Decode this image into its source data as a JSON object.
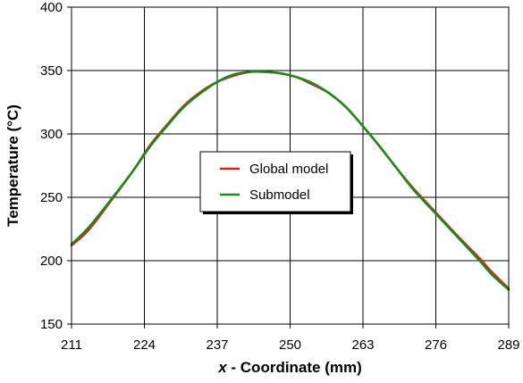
{
  "chart_data": {
    "type": "line",
    "title": "",
    "xlabel_var": "x",
    "xlabel_rest": " - Coordinate (mm)",
    "ylabel": "Temperature (°C)",
    "xlim": [
      211,
      289
    ],
    "ylim": [
      150,
      400
    ],
    "xticks": [
      "211",
      "224",
      "237",
      "250",
      "263",
      "276",
      "289"
    ],
    "yticks": [
      "150",
      "200",
      "250",
      "300",
      "350",
      "400"
    ],
    "grid": true,
    "legend_position": "center",
    "series": [
      {
        "name": "Global model",
        "color": "#e0201a",
        "x": [
          211,
          214,
          218,
          222,
          225,
          228,
          231,
          234,
          237,
          240,
          243,
          245,
          248,
          251,
          254,
          257,
          260,
          263,
          266,
          269,
          272,
          276,
          280,
          284,
          286,
          289
        ],
        "y": [
          212,
          224,
          247,
          271,
          291,
          307,
          322,
          333,
          341,
          346,
          349,
          349,
          348,
          345,
          339,
          332,
          321,
          306,
          290,
          273,
          257,
          238,
          219,
          201,
          191,
          178
        ]
      },
      {
        "name": "Submodel",
        "color": "#1a8a1a",
        "x": [
          211,
          214,
          218,
          222,
          225,
          228,
          231,
          234,
          237,
          240,
          243,
          245,
          248,
          251,
          254,
          257,
          260,
          263,
          266,
          269,
          272,
          276,
          280,
          284,
          286,
          289
        ],
        "y": [
          213,
          226,
          248,
          271,
          290,
          306,
          321,
          332,
          341,
          347,
          349,
          349,
          348,
          345,
          340,
          332,
          321,
          306,
          290,
          273,
          256,
          237,
          218,
          199,
          189,
          177
        ]
      }
    ]
  }
}
